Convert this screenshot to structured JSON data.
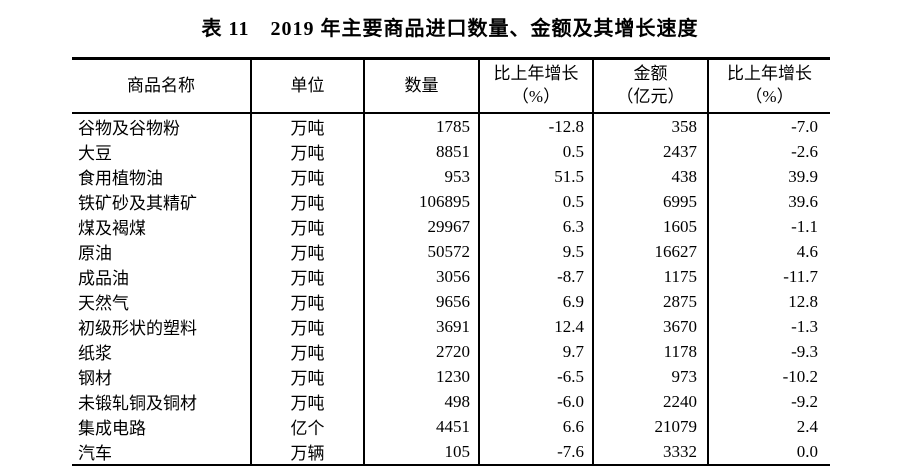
{
  "title": "表 11　2019 年主要商品进口数量、金额及其增长速度",
  "table": {
    "headers": [
      {
        "line1": "商品名称",
        "line2": ""
      },
      {
        "line1": "单位",
        "line2": ""
      },
      {
        "line1": "数量",
        "line2": ""
      },
      {
        "line1": "比上年增长",
        "line2": "（%）"
      },
      {
        "line1": "金额",
        "line2": "（亿元）"
      },
      {
        "line1": "比上年增长",
        "line2": "（%）"
      }
    ],
    "rows": [
      [
        "谷物及谷物粉",
        "万吨",
        "1785",
        "-12.8",
        "358",
        "-7.0"
      ],
      [
        "大豆",
        "万吨",
        "8851",
        "0.5",
        "2437",
        "-2.6"
      ],
      [
        "食用植物油",
        "万吨",
        "953",
        "51.5",
        "438",
        "39.9"
      ],
      [
        "铁矿砂及其精矿",
        "万吨",
        "106895",
        "0.5",
        "6995",
        "39.6"
      ],
      [
        "煤及褐煤",
        "万吨",
        "29967",
        "6.3",
        "1605",
        "-1.1"
      ],
      [
        "原油",
        "万吨",
        "50572",
        "9.5",
        "16627",
        "4.6"
      ],
      [
        "成品油",
        "万吨",
        "3056",
        "-8.7",
        "1175",
        "-11.7"
      ],
      [
        "天然气",
        "万吨",
        "9656",
        "6.9",
        "2875",
        "12.8"
      ],
      [
        "初级形状的塑料",
        "万吨",
        "3691",
        "12.4",
        "3670",
        "-1.3"
      ],
      [
        "纸浆",
        "万吨",
        "2720",
        "9.7",
        "1178",
        "-9.3"
      ],
      [
        "钢材",
        "万吨",
        "1230",
        "-6.5",
        "973",
        "-10.2"
      ],
      [
        "未锻轧铜及铜材",
        "万吨",
        "498",
        "-6.0",
        "2240",
        "-9.2"
      ],
      [
        "集成电路",
        "亿个",
        "4451",
        "6.6",
        "21079",
        "2.4"
      ],
      [
        "汽车",
        "万辆",
        "105",
        "-7.6",
        "3332",
        "0.0"
      ]
    ]
  },
  "colors": {
    "text": "#000000",
    "background": "#ffffff",
    "border": "#000000"
  }
}
